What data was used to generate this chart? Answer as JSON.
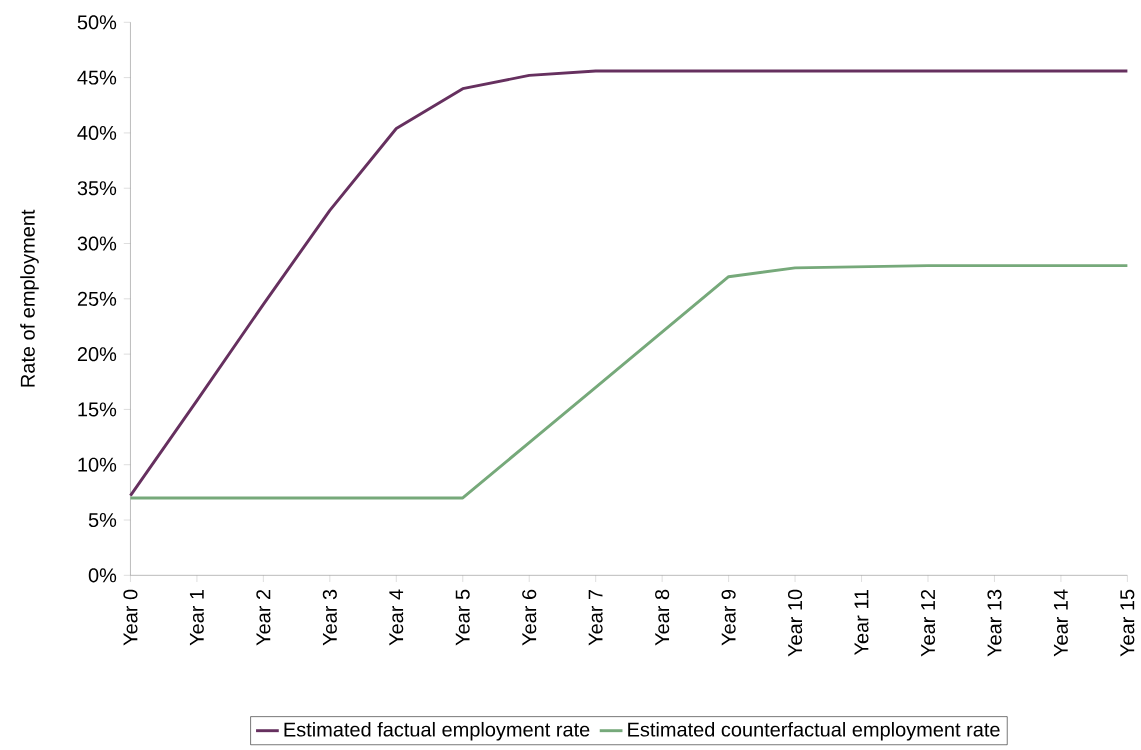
{
  "chart_data": {
    "type": "line",
    "ylabel": "Rate of employment",
    "categories": [
      "Year 0",
      "Year 1",
      "Year 2",
      "Year 3",
      "Year 4",
      "Year 5",
      "Year 6",
      "Year 7",
      "Year 8",
      "Year 9",
      "Year 10",
      "Year 11",
      "Year 12",
      "Year 13",
      "Year 14",
      "Year 15"
    ],
    "series": [
      {
        "name": "Estimated factual employment rate",
        "color": "#66305f",
        "values": [
          7.2,
          15.8,
          24.5,
          33.0,
          40.4,
          44.0,
          45.2,
          45.6,
          45.6,
          45.6,
          45.6,
          45.6,
          45.6,
          45.6,
          45.6,
          45.6
        ]
      },
      {
        "name": "Estimated counterfactual employment rate",
        "color": "#76a97a",
        "values": [
          7.0,
          7.0,
          7.0,
          7.0,
          7.0,
          7.0,
          12.0,
          17.0,
          22.0,
          27.0,
          27.8,
          27.9,
          28.0,
          28.0,
          28.0,
          28.0
        ]
      }
    ],
    "ylim": [
      0,
      50
    ],
    "yticks": [
      {
        "value": 0,
        "label": "0%"
      },
      {
        "value": 5,
        "label": "5%"
      },
      {
        "value": 10,
        "label": "10%"
      },
      {
        "value": 15,
        "label": "15%"
      },
      {
        "value": 20,
        "label": "20%"
      },
      {
        "value": 25,
        "label": "25%"
      },
      {
        "value": 30,
        "label": "30%"
      },
      {
        "value": 35,
        "label": "35%"
      },
      {
        "value": 40,
        "label": "40%"
      },
      {
        "value": 45,
        "label": "45%"
      },
      {
        "value": 50,
        "label": "50%"
      }
    ],
    "legend": "bottom",
    "marker": "none",
    "line_style": "solid"
  }
}
